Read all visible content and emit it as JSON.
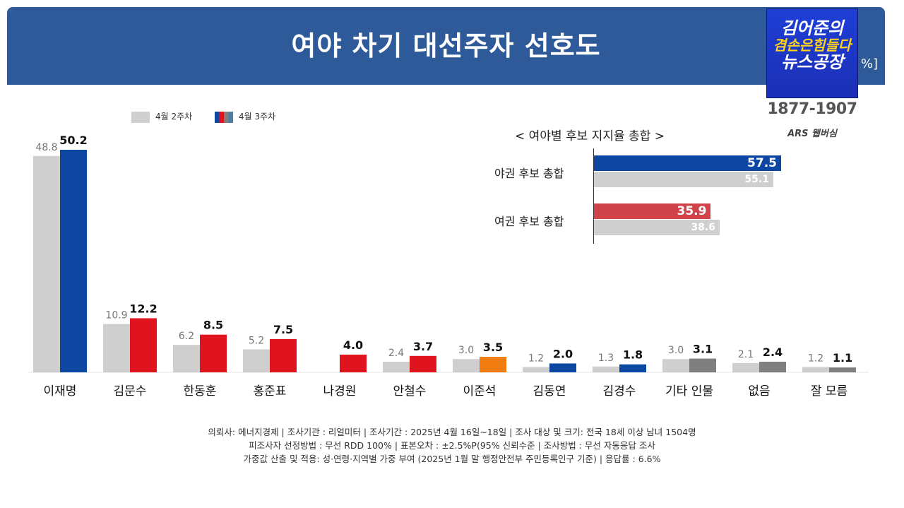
{
  "header": {
    "title": "여야 차기 대선주자 선호도",
    "unit": "%]"
  },
  "logo": {
    "line1": "김어준의",
    "line2": "겸손은힘들다",
    "line3": "뉴스공장",
    "phone": "1877-1907",
    "sub": "ARS 웹버심"
  },
  "legend": {
    "prev_label": "4월 2주차",
    "curr_label": "4월 3주차"
  },
  "colors": {
    "prev": "#cfcfcf",
    "blue": "#0d47a1",
    "red": "#e0141e",
    "orange": "#f07c12",
    "gray": "#7f7f7f"
  },
  "chart_data": [
    {
      "type": "bar",
      "categories": [
        "이재명",
        "김문수",
        "한동훈",
        "홍준표",
        "나경원",
        "안철수",
        "이준석",
        "김동연",
        "김경수",
        "기타 인물",
        "없음",
        "잘 모름"
      ],
      "series": [
        {
          "name": "4월 2주차",
          "values": [
            48.8,
            10.9,
            6.2,
            5.2,
            null,
            2.4,
            3.0,
            1.2,
            1.3,
            3.0,
            2.1,
            1.2
          ]
        },
        {
          "name": "4월 3주차",
          "values": [
            50.2,
            12.2,
            8.5,
            7.5,
            4.0,
            3.7,
            3.5,
            2.0,
            1.8,
            3.1,
            2.4,
            1.1
          ]
        }
      ],
      "bar_colors_curr": [
        "#0d47a1",
        "#e0141e",
        "#e0141e",
        "#e0141e",
        "#e0141e",
        "#e0141e",
        "#f07c12",
        "#0d47a1",
        "#0d47a1",
        "#7f7f7f",
        "#7f7f7f",
        "#7f7f7f"
      ],
      "ylim": [
        0,
        50.2
      ],
      "grid": false,
      "legend_position": "top-left"
    },
    {
      "type": "bar",
      "orientation": "horizontal",
      "title": "< 여야별 후보 지지율 총합 >",
      "categories": [
        "야권 후보 총합",
        "여권 후보 총합"
      ],
      "series": [
        {
          "name": "4월 3주차",
          "values": [
            57.5,
            35.9
          ]
        },
        {
          "name": "4월 2주차",
          "values": [
            55.1,
            38.6
          ]
        }
      ],
      "bar_colors_curr": [
        "#0d47a1",
        "#d1434b"
      ]
    }
  ],
  "footnote": {
    "line1": "의뢰사: 에너지경제 | 조사기관 : 리얼미터 | 조사기간 : 2025년 4월 16일~18일 | 조사 대상 및 크기: 전국 18세 이상 남녀 1504명",
    "line2": "피조사자 선정방법 : 무선 RDD 100% | 표본오차 : ±2.5%P(95% 신뢰수준 | 조사방법 : 무선 자동응답 조사",
    "line3": "가중값 산출 및 적용: 성·연령·지역별 가중 부여 (2025년 1월 말 행정안전부 주민등록인구 기준) | 응답률 : 6.6%"
  }
}
